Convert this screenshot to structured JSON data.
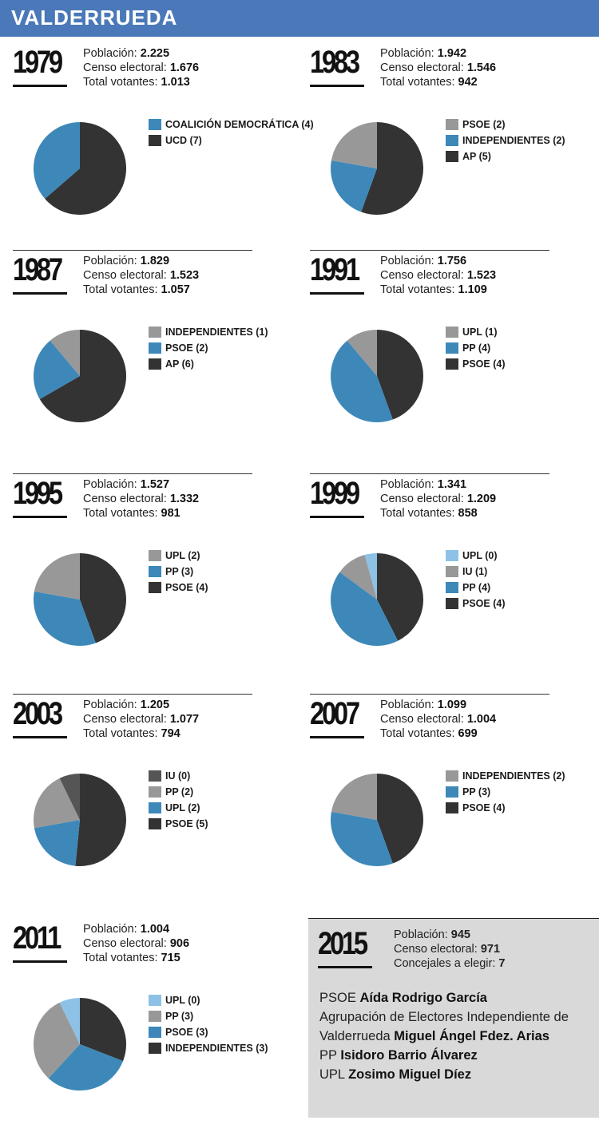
{
  "title": "VALDERRUEDA",
  "stat_labels": {
    "poblacion": "Población:",
    "censo": "Censo electoral:",
    "votantes": "Total votantes:",
    "concejales": "Concejales a elegir:"
  },
  "colors": {
    "dark": "#333333",
    "blue": "#3d88b9",
    "gray": "#989898",
    "lightblue": "#8dc2e6",
    "darkgray": "#555555"
  },
  "chart_data": [
    {
      "type": "pie",
      "year": "1979",
      "poblacion": "2.225",
      "censo": "1.676",
      "votantes": "1.013",
      "slices": [
        {
          "label": "COALICIÓN DEMOCRÁTICA (4)",
          "value": 4,
          "color": "#3d88b9"
        },
        {
          "label": "UCD (7)",
          "value": 7,
          "color": "#333333"
        }
      ]
    },
    {
      "type": "pie",
      "year": "1983",
      "poblacion": "1.942",
      "censo": "1.546",
      "votantes": "942",
      "slices": [
        {
          "label": "PSOE (2)",
          "value": 2,
          "color": "#989898"
        },
        {
          "label": "INDEPENDIENTES (2)",
          "value": 2,
          "color": "#3d88b9"
        },
        {
          "label": "AP (5)",
          "value": 5,
          "color": "#333333"
        }
      ]
    },
    {
      "type": "pie",
      "year": "1987",
      "poblacion": "1.829",
      "censo": "1.523",
      "votantes": "1.057",
      "slices": [
        {
          "label": "INDEPENDIENTES (1)",
          "value": 1,
          "color": "#989898"
        },
        {
          "label": "PSOE (2)",
          "value": 2,
          "color": "#3d88b9"
        },
        {
          "label": "AP (6)",
          "value": 6,
          "color": "#333333"
        }
      ]
    },
    {
      "type": "pie",
      "year": "1991",
      "poblacion": "1.756",
      "censo": "1.523",
      "votantes": "1.109",
      "slices": [
        {
          "label": "UPL (1)",
          "value": 1,
          "color": "#989898"
        },
        {
          "label": "PP (4)",
          "value": 4,
          "color": "#3d88b9"
        },
        {
          "label": "PSOE (4)",
          "value": 4,
          "color": "#333333"
        }
      ]
    },
    {
      "type": "pie",
      "year": "1995",
      "poblacion": "1.527",
      "censo": "1.332",
      "votantes": "981",
      "slices": [
        {
          "label": "UPL (2)",
          "value": 2,
          "color": "#989898"
        },
        {
          "label": "PP (3)",
          "value": 3,
          "color": "#3d88b9"
        },
        {
          "label": "PSOE (4)",
          "value": 4,
          "color": "#333333"
        }
      ]
    },
    {
      "type": "pie",
      "year": "1999",
      "poblacion": "1.341",
      "censo": "1.209",
      "votantes": "858",
      "slices": [
        {
          "label": "UPL (0)",
          "value": 0,
          "display_value": 0.4,
          "color": "#8dc2e6"
        },
        {
          "label": "IU (1)",
          "value": 1,
          "color": "#989898"
        },
        {
          "label": "PP (4)",
          "value": 4,
          "color": "#3d88b9"
        },
        {
          "label": "PSOE (4)",
          "value": 4,
          "color": "#333333"
        }
      ]
    },
    {
      "type": "pie",
      "year": "2003",
      "poblacion": "1.205",
      "censo": "1.077",
      "votantes": "794",
      "slices": [
        {
          "label": "IU (0)",
          "value": 0,
          "display_value": 0.7,
          "color": "#555555"
        },
        {
          "label": "PP (2)",
          "value": 2,
          "color": "#989898"
        },
        {
          "label": "UPL (2)",
          "value": 2,
          "color": "#3d88b9"
        },
        {
          "label": "PSOE (5)",
          "value": 5,
          "color": "#333333"
        }
      ]
    },
    {
      "type": "pie",
      "year": "2007",
      "poblacion": "1.099",
      "censo": "1.004",
      "votantes": "699",
      "slices": [
        {
          "label": "INDEPENDIENTES (2)",
          "value": 2,
          "color": "#989898"
        },
        {
          "label": "PP (3)",
          "value": 3,
          "color": "#3d88b9"
        },
        {
          "label": "PSOE (4)",
          "value": 4,
          "color": "#333333"
        }
      ]
    },
    {
      "type": "pie",
      "year": "2011",
      "poblacion": "1.004",
      "censo": "906",
      "votantes": "715",
      "slices": [
        {
          "label": "UPL (0)",
          "value": 0,
          "display_value": 0.7,
          "color": "#8dc2e6"
        },
        {
          "label": "PP (3)",
          "value": 3,
          "color": "#989898"
        },
        {
          "label": "PSOE (3)",
          "value": 3,
          "color": "#3d88b9"
        },
        {
          "label": "INDEPENDIENTES (3)",
          "value": 3,
          "color": "#333333"
        }
      ]
    }
  ],
  "panel2015": {
    "year": "2015",
    "poblacion": "945",
    "censo": "971",
    "concejales": "7",
    "candidates": [
      {
        "party": "PSOE",
        "name": "Aída Rodrigo García"
      },
      {
        "party": "Agrupación de Electores Independiente de Valderrueda",
        "name": "Miguel Ángel Fdez. Arias"
      },
      {
        "party": "PP",
        "name": "Isidoro Barrio Álvarez"
      },
      {
        "party": "UPL",
        "name": "Zosimo Miguel Díez"
      }
    ]
  }
}
